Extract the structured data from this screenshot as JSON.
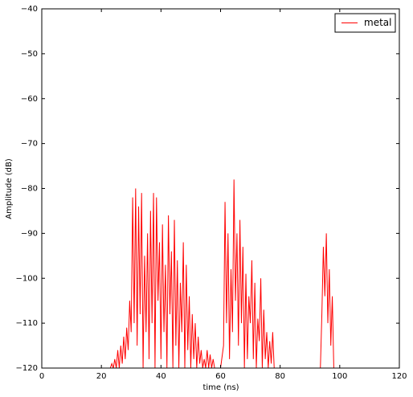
{
  "chart_data": {
    "type": "line",
    "xlabel": "time (ns)",
    "ylabel": "Amplitude (dB)",
    "x": [
      0,
      22,
      23,
      23.5,
      24,
      24.5,
      25,
      25.5,
      26,
      26.5,
      27,
      27.5,
      28,
      28.5,
      29,
      29.5,
      30,
      30.5,
      31,
      31.5,
      32,
      32.5,
      33,
      33.5,
      34,
      34.5,
      35,
      35.5,
      36,
      36.5,
      37,
      37.5,
      38,
      38.5,
      39,
      39.5,
      40,
      40.5,
      41,
      41.5,
      42,
      42.5,
      43,
      43.5,
      44,
      44.5,
      45,
      45.5,
      46,
      46.5,
      47,
      47.5,
      48,
      48.5,
      49,
      49.5,
      50,
      50.5,
      51,
      51.5,
      52,
      52.5,
      53,
      53.5,
      54,
      54.5,
      55,
      55.5,
      56,
      56.5,
      57,
      57.5,
      58,
      60,
      61,
      61.5,
      62,
      62.5,
      63,
      63.5,
      64,
      64.5,
      65,
      65.5,
      66,
      66.5,
      67,
      67.5,
      68,
      68.5,
      69,
      69.5,
      70,
      70.5,
      71,
      71.5,
      72,
      72.5,
      73,
      73.5,
      74,
      74.5,
      75,
      75.5,
      76,
      76.5,
      77,
      77.5,
      78,
      79,
      93.5,
      94,
      94.5,
      95,
      95.5,
      96,
      96.5,
      97,
      97.5,
      98,
      120
    ],
    "series": [
      {
        "name": "metal",
        "color": "#ff0000",
        "values": [
          -120,
          -120,
          -120,
          -119,
          -120,
          -118,
          -120,
          -116,
          -120,
          -115,
          -119,
          -113,
          -118,
          -111,
          -116,
          -105,
          -112,
          -82,
          -110,
          -80,
          -115,
          -84,
          -108,
          -81,
          -120,
          -95,
          -112,
          -90,
          -118,
          -85,
          -110,
          -81,
          -120,
          -82,
          -105,
          -92,
          -118,
          -88,
          -112,
          -97,
          -120,
          -86,
          -108,
          -94,
          -120,
          -87,
          -115,
          -96,
          -120,
          -101,
          -112,
          -92,
          -120,
          -97,
          -116,
          -104,
          -120,
          -108,
          -118,
          -110,
          -120,
          -113,
          -119,
          -116,
          -120,
          -118,
          -120,
          -116,
          -120,
          -117,
          -120,
          -118,
          -120,
          -120,
          -115,
          -83,
          -110,
          -90,
          -118,
          -98,
          -112,
          -78,
          -105,
          -90,
          -115,
          -87,
          -110,
          -93,
          -120,
          -99,
          -118,
          -104,
          -110,
          -96,
          -118,
          -101,
          -120,
          -109,
          -114,
          -100,
          -120,
          -107,
          -118,
          -112,
          -120,
          -114,
          -119,
          -112,
          -120,
          -120,
          -120,
          -108,
          -93,
          -104,
          -90,
          -110,
          -98,
          -115,
          -104,
          -120,
          -120
        ]
      }
    ],
    "xlim": [
      0,
      120
    ],
    "xticks": [
      0,
      20,
      40,
      60,
      80,
      100,
      120
    ],
    "ylim": [
      -120,
      -40
    ],
    "yticks": [
      {
        "value": -120,
        "label": "−120"
      },
      {
        "value": -110,
        "label": "−110"
      },
      {
        "value": -100,
        "label": "−100"
      },
      {
        "value": -90,
        "label": "−90"
      },
      {
        "value": -80,
        "label": "−80"
      },
      {
        "value": -70,
        "label": "−70"
      },
      {
        "value": -60,
        "label": "−60"
      },
      {
        "value": -50,
        "label": "−50"
      },
      {
        "value": -40,
        "label": "−40"
      }
    ],
    "legend": "upper right"
  }
}
